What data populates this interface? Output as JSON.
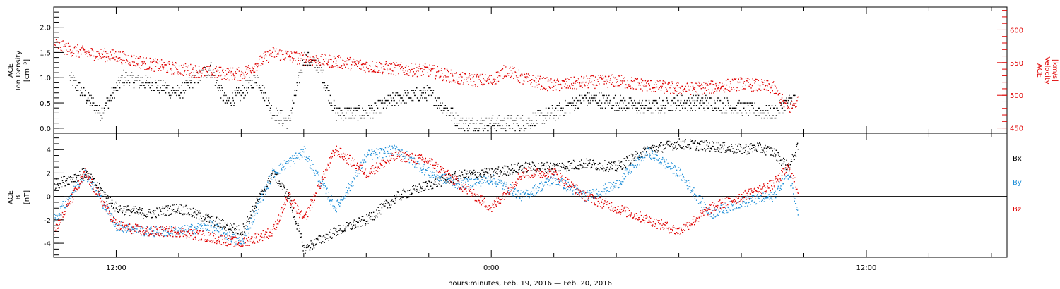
{
  "x_axis": {
    "label": "hours:minutes, Feb. 19, 2016 — Feb. 20, 2016",
    "range_hours": [
      -14.0,
      16.5
    ],
    "labeled_ticks": [
      {
        "hour": -12,
        "label": "12:00"
      },
      {
        "hour": 0,
        "label": "0:00"
      },
      {
        "hour": 12,
        "label": "12:00"
      }
    ]
  },
  "chart_data": [
    {
      "type": "scatter",
      "panel": "top",
      "ylabel_left": [
        "ACE",
        "Ion Density",
        "[cm⁻³]"
      ],
      "ylabel_right": [
        "ACE",
        "Velocity",
        "[km/s]"
      ],
      "ylim_left": [
        -0.1,
        2.4
      ],
      "ylim_right": [
        442,
        635
      ],
      "yticks_left": [
        "0.0",
        "0.5",
        "1.0",
        "1.5",
        "2.0"
      ],
      "yticks_right": [
        "450",
        "500",
        "550",
        "600"
      ],
      "colors": {
        "density": "#000000",
        "velocity": "#e00000"
      },
      "grid": false,
      "series": [
        {
          "axis": "left",
          "x_hours": [
            -13.5,
            -12.5,
            -11.8,
            -11.0,
            -10.0,
            -9.0,
            -8.5,
            -8.0,
            -7.5,
            -7.0,
            -6.5,
            -6.0,
            -5.5,
            -5.0,
            -4.5,
            -4.0,
            -3.0,
            -2.0,
            -1.0,
            -0.5,
            0.0,
            1.0,
            2.0,
            3.0,
            4.0,
            5.0,
            6.0,
            7.0,
            8.0,
            9.0,
            9.7
          ],
          "values": [
            1.0,
            0.3,
            1.0,
            0.9,
            0.7,
            1.2,
            0.5,
            0.7,
            1.0,
            0.3,
            0.1,
            1.4,
            1.2,
            0.3,
            0.3,
            0.3,
            0.6,
            0.7,
            0.1,
            0.1,
            0.1,
            0.1,
            0.3,
            0.6,
            0.5,
            0.4,
            0.5,
            0.5,
            0.4,
            0.3,
            0.6
          ]
        },
        {
          "axis": "right",
          "x_hours": [
            -14.0,
            -13.5,
            -13.0,
            -12.5,
            -12.0,
            -11.0,
            -10.0,
            -9.0,
            -8.0,
            -7.5,
            -7.0,
            -6.0,
            -5.0,
            -4.0,
            -3.0,
            -2.0,
            -1.0,
            0.0,
            0.5,
            1.0,
            2.0,
            3.0,
            4.0,
            5.0,
            6.0,
            7.0,
            8.0,
            9.0,
            9.5,
            9.8
          ],
          "values": [
            578,
            570,
            565,
            562,
            560,
            548,
            540,
            535,
            532,
            548,
            565,
            555,
            552,
            545,
            540,
            538,
            525,
            522,
            540,
            525,
            515,
            520,
            522,
            515,
            510,
            512,
            518,
            512,
            478,
            492
          ]
        }
      ]
    },
    {
      "type": "scatter",
      "panel": "bottom",
      "ylabel_left": [
        "ACE",
        "B",
        "[nT]"
      ],
      "ylim": [
        -5.2,
        5.4
      ],
      "yticks": [
        "-4",
        "-2",
        "0",
        "2",
        "4"
      ],
      "zero_line": true,
      "legend_position": "right",
      "grid": false,
      "series": [
        {
          "name": "Bx",
          "color": "#000000",
          "x_hours": [
            -14.0,
            -13.0,
            -12.0,
            -11.0,
            -10.0,
            -9.0,
            -8.0,
            -7.0,
            -6.5,
            -6.0,
            -5.0,
            -4.0,
            -3.0,
            -2.0,
            -1.0,
            0.0,
            1.0,
            2.0,
            3.0,
            4.0,
            5.0,
            6.0,
            7.0,
            8.0,
            8.5,
            9.0,
            9.5,
            9.8
          ],
          "values": [
            1.0,
            2.0,
            -1.0,
            -1.5,
            -1.0,
            -2.0,
            -3.0,
            2.0,
            0.0,
            -4.5,
            -3.0,
            -2.0,
            0.0,
            1.0,
            1.8,
            2.0,
            2.5,
            2.5,
            2.8,
            2.5,
            4.0,
            4.5,
            4.3,
            4.0,
            4.2,
            3.8,
            2.5,
            4.2
          ]
        },
        {
          "name": "By",
          "color": "#1f8fd8",
          "x_hours": [
            -14.0,
            -13.0,
            -12.0,
            -11.0,
            -10.0,
            -9.0,
            -8.0,
            -7.5,
            -7.0,
            -6.0,
            -5.0,
            -4.5,
            -4.0,
            -3.0,
            -2.0,
            -1.0,
            0.0,
            1.0,
            2.0,
            3.0,
            4.0,
            4.5,
            5.0,
            6.0,
            7.0,
            8.0,
            9.0,
            9.5,
            9.8
          ],
          "values": [
            -2.0,
            2.0,
            -2.5,
            -3.0,
            -3.0,
            -2.5,
            -4.0,
            -1.0,
            2.0,
            3.8,
            -1.0,
            1.0,
            3.5,
            4.0,
            2.0,
            1.0,
            1.5,
            0.0,
            1.5,
            0.0,
            1.0,
            2.5,
            3.8,
            2.0,
            -1.5,
            -0.5,
            0.0,
            2.0,
            -1.2
          ]
        },
        {
          "name": "Bz",
          "color": "#e00000",
          "x_hours": [
            -14.0,
            -13.0,
            -12.0,
            -11.0,
            -10.0,
            -9.0,
            -8.0,
            -7.0,
            -6.5,
            -6.0,
            -5.0,
            -4.0,
            -3.0,
            -2.0,
            -1.0,
            0.0,
            1.0,
            2.0,
            3.0,
            4.0,
            5.0,
            6.0,
            7.0,
            8.0,
            9.0,
            9.5,
            9.8
          ],
          "values": [
            -3.0,
            2.0,
            -2.5,
            -3.0,
            -3.0,
            -3.5,
            -4.0,
            -3.0,
            0.0,
            -2.0,
            4.0,
            2.0,
            3.5,
            3.0,
            1.0,
            -1.0,
            2.0,
            2.0,
            0.0,
            -1.0,
            -2.0,
            -3.0,
            -1.0,
            0.0,
            1.0,
            2.5,
            0.5
          ]
        }
      ]
    }
  ]
}
